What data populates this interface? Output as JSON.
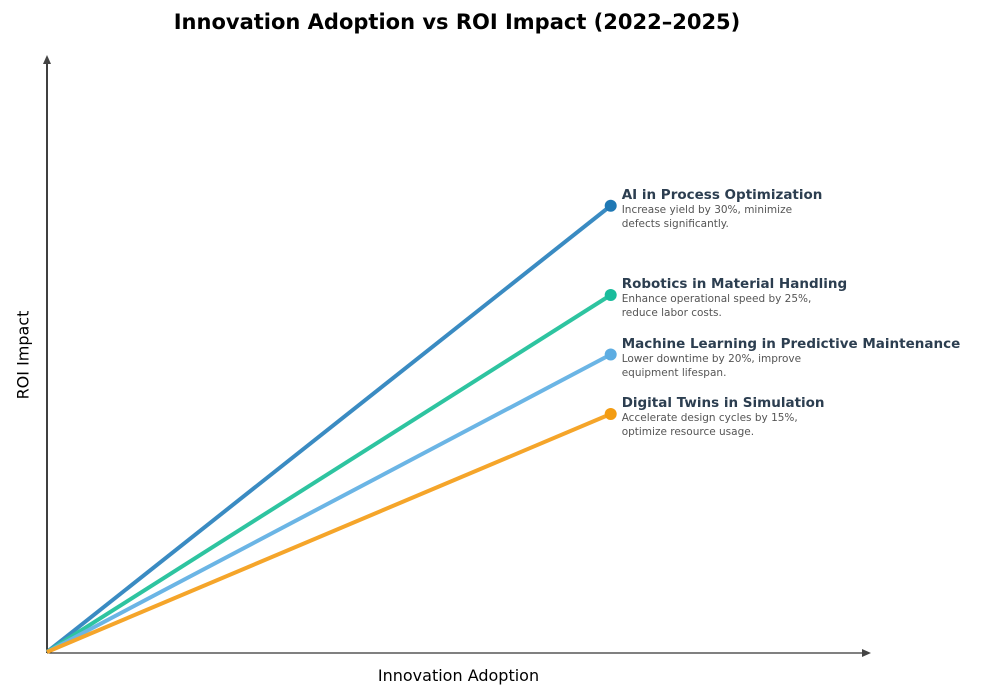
{
  "chart_data": {
    "type": "line",
    "title": "Innovation Adoption vs ROI Impact (2022–2025)",
    "xlabel": "Innovation Adoption",
    "ylabel": "ROI Impact",
    "xlim": [
      0,
      1.46
    ],
    "ylim": [
      0,
      1
    ],
    "grid": false,
    "ticks": false,
    "series": [
      {
        "name": "AI in Process Optimization",
        "description": [
          "Increase yield by 30%, minimize",
          "defects significantly."
        ],
        "x": [
          0,
          1
        ],
        "y": [
          0,
          0.75
        ],
        "line_color": "#3a8bc2",
        "marker_color": "#1f78b4"
      },
      {
        "name": "Robotics in Material Handling",
        "description": [
          "Enhance operational speed by 25%,",
          "reduce labor costs."
        ],
        "x": [
          0,
          1
        ],
        "y": [
          0,
          0.6
        ],
        "line_color": "#2ec4a0",
        "marker_color": "#1abc9c"
      },
      {
        "name": "Machine Learning in Predictive Maintenance",
        "description": [
          "Lower downtime by 20%, improve",
          "equipment lifespan."
        ],
        "x": [
          0,
          1
        ],
        "y": [
          0,
          0.5
        ],
        "line_color": "#6bb5e5",
        "marker_color": "#5dade2"
      },
      {
        "name": "Digital Twins in Simulation",
        "description": [
          "Accelerate design cycles by 15%,",
          "optimize resource usage."
        ],
        "x": [
          0,
          1
        ],
        "y": [
          0,
          0.4
        ],
        "line_color": "#f5a52a",
        "marker_color": "#f39c12"
      }
    ]
  }
}
